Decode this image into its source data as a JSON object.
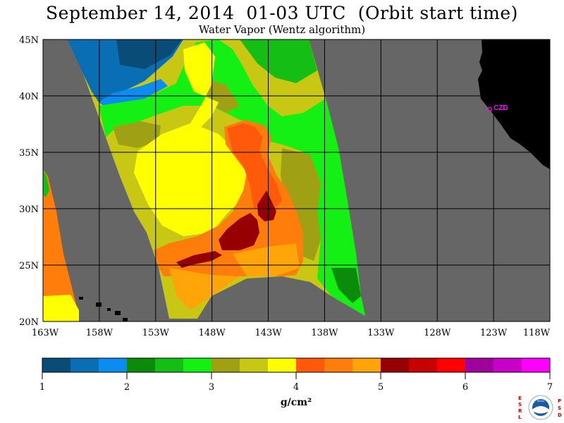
{
  "title": "September 14, 2014  01-03 UTC  (Orbit start time)",
  "subtitle": "Water Vapor (Wentz algorithm)",
  "lat_labels": [
    "45N",
    "40N",
    "35N",
    "30N",
    "25N",
    "20N"
  ],
  "lon_labels": [
    "163W",
    "158W",
    "153W",
    "148W",
    "143W",
    "138W",
    "133W",
    "128W",
    "123W",
    "118W"
  ],
  "station_label": "CZD",
  "colorbar": {
    "colors": [
      "#0a4c78",
      "#0a6eb4",
      "#0a8cf0",
      "#0a8c0a",
      "#14be14",
      "#14f014",
      "#a0a014",
      "#c8c814",
      "#ffff00",
      "#ff5a0a",
      "#ff7d0a",
      "#ffa50a",
      "#960000",
      "#c80000",
      "#ff0000",
      "#a0009b",
      "#c800c8",
      "#ff00ff"
    ],
    "tick_labels": [
      "1",
      "2",
      "3",
      "4",
      "5",
      "6",
      "7"
    ],
    "unit": "g/cm²"
  },
  "logo": {
    "left_letters": [
      "E",
      "S",
      "R",
      "L"
    ],
    "right_letters": [
      "P",
      "S",
      "D"
    ],
    "center": "NOAA"
  }
}
